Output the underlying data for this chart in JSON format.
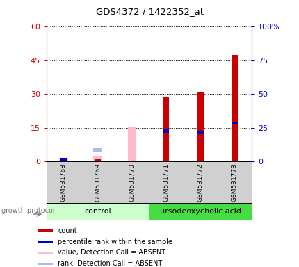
{
  "title": "GDS4372 / 1422352_at",
  "samples": [
    "GSM531768",
    "GSM531769",
    "GSM531770",
    "GSM531771",
    "GSM531772",
    "GSM531773"
  ],
  "x_positions": [
    0,
    1,
    2,
    3,
    4,
    5
  ],
  "count_values": [
    0.8,
    1.2,
    0.3,
    29.0,
    31.0,
    47.5
  ],
  "count_color": "#cc0000",
  "percentile_values": [
    1.5,
    null,
    null,
    22.5,
    21.5,
    28.5
  ],
  "percentile_color": "#0000cc",
  "absent_value_values": [
    1.2,
    2.2,
    15.5,
    null,
    null,
    null
  ],
  "absent_value_color": "#ffbbcc",
  "absent_rank_values": [
    null,
    8.5,
    null,
    null,
    null,
    null
  ],
  "absent_rank_color": "#aabbee",
  "ylim_left": [
    0,
    60
  ],
  "ylim_right": [
    0,
    100
  ],
  "yticks_left": [
    0,
    15,
    30,
    45,
    60
  ],
  "yticks_right": [
    0,
    25,
    50,
    75,
    100
  ],
  "ytick_labels_left": [
    "0",
    "15",
    "30",
    "45",
    "60"
  ],
  "ytick_labels_right": [
    "0",
    "25",
    "50",
    "75",
    "100%"
  ],
  "left_axis_color": "#cc0000",
  "right_axis_color": "#0000cc",
  "control_label": "control",
  "treatment_label": "ursodeoxycholic acid",
  "growth_protocol_label": "growth protocol",
  "control_color": "#ccffcc",
  "treatment_color": "#44dd44",
  "bg_color": "#d0d0d0",
  "legend_items": [
    {
      "label": "count",
      "color": "#cc0000"
    },
    {
      "label": "percentile rank within the sample",
      "color": "#0000cc"
    },
    {
      "label": "value, Detection Call = ABSENT",
      "color": "#ffbbcc"
    },
    {
      "label": "rank, Detection Call = ABSENT",
      "color": "#aabbee"
    }
  ],
  "bar_width": 0.18,
  "pct_square_size": 0.12
}
